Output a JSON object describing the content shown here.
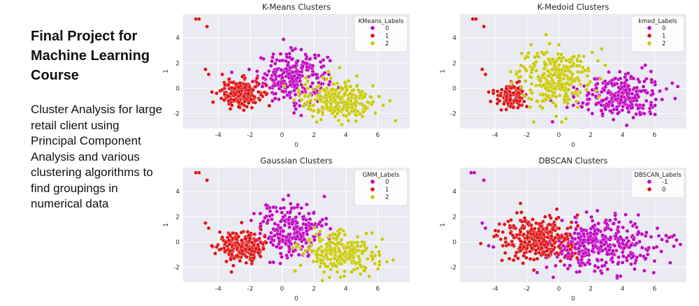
{
  "title": "Final Project for Machine Learning Course",
  "description": "Cluster Analysis for large retail client using Principal Component Analysis and various clustering algorithms to find groupings in numerical data",
  "colors": {
    "cluster0": "#c000c0",
    "cluster1": "#dd1111",
    "cluster2": "#c8c800",
    "plot_bg": "#eaeaf2",
    "grid": "#ffffff"
  },
  "chart_data": [
    {
      "type": "scatter",
      "title": "K-Means Clusters",
      "xlabel": "0",
      "ylabel": "1",
      "xlim": [
        -6.2,
        8.0
      ],
      "ylim": [
        -3.2,
        5.9
      ],
      "xticks": [
        "-4",
        "-2",
        "0",
        "2",
        "4",
        "6"
      ],
      "yticks": [
        "-2",
        "0",
        "2",
        "4"
      ],
      "legend": {
        "title": "KMeans_Labels",
        "entries": [
          {
            "label": "0",
            "color": "#c000c0"
          },
          {
            "label": "1",
            "color": "#dd1111"
          },
          {
            "label": "2",
            "color": "#c8c800"
          }
        ],
        "position": "top-right"
      },
      "clusters": [
        {
          "label": "0",
          "color": "#c000c0",
          "center": [
            0.7,
            0.9
          ],
          "spread": [
            1.1,
            1.0
          ],
          "n": 260
        },
        {
          "label": "1",
          "color": "#dd1111",
          "center": [
            -2.6,
            -0.4
          ],
          "spread": [
            0.6,
            0.55
          ],
          "n": 230
        },
        {
          "label": "2",
          "color": "#c8c800",
          "center": [
            3.6,
            -0.9
          ],
          "spread": [
            1.2,
            0.8
          ],
          "n": 260
        }
      ],
      "outliers": [
        {
          "x": -5.2,
          "y": 5.5,
          "label": "1"
        },
        {
          "x": -5.4,
          "y": 5.5,
          "label": "1"
        },
        {
          "x": -4.7,
          "y": 4.9,
          "label": "1"
        },
        {
          "x": -4.8,
          "y": 1.5,
          "label": "1"
        },
        {
          "x": -4.6,
          "y": 1.1,
          "label": "1"
        },
        {
          "x": -4.4,
          "y": -0.3,
          "label": "1"
        },
        {
          "x": -4.1,
          "y": -0.4,
          "label": "1"
        }
      ]
    },
    {
      "type": "scatter",
      "title": "K-Medoid Clusters",
      "xlabel": "0",
      "ylabel": "1",
      "xlim": [
        -6.2,
        8.0
      ],
      "ylim": [
        -3.2,
        5.9
      ],
      "xticks": [
        "-4",
        "-2",
        "0",
        "2",
        "4",
        "6"
      ],
      "yticks": [
        "-2",
        "0",
        "2",
        "4"
      ],
      "legend": {
        "title": "kmed_Labels",
        "entries": [
          {
            "label": "0",
            "color": "#c000c0"
          },
          {
            "label": "1",
            "color": "#dd1111"
          },
          {
            "label": "2",
            "color": "#c8c800"
          }
        ],
        "position": "top-right"
      },
      "clusters": [
        {
          "label": "0",
          "color": "#c000c0",
          "center": [
            3.8,
            -0.6
          ],
          "spread": [
            1.3,
            0.9
          ],
          "n": 280
        },
        {
          "label": "1",
          "color": "#dd1111",
          "center": [
            -2.9,
            -0.6
          ],
          "spread": [
            0.45,
            0.45
          ],
          "n": 120
        },
        {
          "label": "2",
          "color": "#c8c800",
          "center": [
            -0.3,
            0.8
          ],
          "spread": [
            1.1,
            1.1
          ],
          "n": 300
        }
      ],
      "outliers": [
        {
          "x": -5.2,
          "y": 5.5,
          "label": "1"
        },
        {
          "x": -5.4,
          "y": 5.5,
          "label": "1"
        },
        {
          "x": -4.7,
          "y": 4.9,
          "label": "1"
        },
        {
          "x": -4.8,
          "y": 1.5,
          "label": "1"
        },
        {
          "x": -4.6,
          "y": 1.1,
          "label": "1"
        },
        {
          "x": -4.4,
          "y": -0.3,
          "label": "1"
        },
        {
          "x": -4.1,
          "y": -0.4,
          "label": "1"
        }
      ]
    },
    {
      "type": "scatter",
      "title": "Gaussian Clusters",
      "xlabel": "0",
      "ylabel": "1",
      "xlim": [
        -6.2,
        8.0
      ],
      "ylim": [
        -3.2,
        5.9
      ],
      "xticks": [
        "-4",
        "-2",
        "0",
        "2",
        "4",
        "6"
      ],
      "yticks": [
        "-2",
        "0",
        "2",
        "4"
      ],
      "legend": {
        "title": "GMM_Labels",
        "entries": [
          {
            "label": "0",
            "color": "#c000c0"
          },
          {
            "label": "1",
            "color": "#dd1111"
          },
          {
            "label": "2",
            "color": "#c8c800"
          }
        ],
        "position": "top-right"
      },
      "clusters": [
        {
          "label": "0",
          "color": "#c000c0",
          "center": [
            0.6,
            0.8
          ],
          "spread": [
            1.1,
            1.1
          ],
          "n": 260
        },
        {
          "label": "1",
          "color": "#dd1111",
          "center": [
            -2.5,
            -0.4
          ],
          "spread": [
            0.65,
            0.6
          ],
          "n": 250
        },
        {
          "label": "2",
          "color": "#c8c800",
          "center": [
            3.6,
            -0.9
          ],
          "spread": [
            1.2,
            0.8
          ],
          "n": 250
        }
      ],
      "outliers": [
        {
          "x": -5.2,
          "y": 5.5,
          "label": "1"
        },
        {
          "x": -5.4,
          "y": 5.5,
          "label": "1"
        },
        {
          "x": -4.7,
          "y": 4.9,
          "label": "1"
        },
        {
          "x": -4.8,
          "y": 1.5,
          "label": "1"
        },
        {
          "x": -4.6,
          "y": 1.1,
          "label": "1"
        },
        {
          "x": -4.4,
          "y": -0.3,
          "label": "1"
        },
        {
          "x": -4.1,
          "y": -0.4,
          "label": "1"
        }
      ]
    },
    {
      "type": "scatter",
      "title": "DBSCAN Clusters",
      "xlabel": "0",
      "ylabel": "1",
      "xlim": [
        -6.2,
        8.0
      ],
      "ylim": [
        -3.2,
        5.9
      ],
      "xticks": [
        "-4",
        "-2",
        "0",
        "2",
        "4",
        "6"
      ],
      "yticks": [
        "-2",
        "0",
        "2",
        "4"
      ],
      "legend": {
        "title": "DBSCAN_Labels",
        "entries": [
          {
            "label": "-1",
            "color": "#c000c0"
          },
          {
            "label": "0",
            "color": "#dd1111"
          }
        ],
        "position": "top-right"
      },
      "clusters": [
        {
          "label": "-1",
          "color": "#c000c0",
          "center": [
            2.6,
            -0.3
          ],
          "spread": [
            1.8,
            1.1
          ],
          "n": 380
        },
        {
          "label": "0",
          "color": "#dd1111",
          "center": [
            -1.4,
            0.2
          ],
          "spread": [
            1.1,
            0.9
          ],
          "n": 300
        }
      ],
      "outliers": [
        {
          "x": -5.3,
          "y": 5.5,
          "label": "-1"
        },
        {
          "x": -5.5,
          "y": 5.5,
          "label": "-1"
        },
        {
          "x": -4.7,
          "y": 4.9,
          "label": "-1"
        },
        {
          "x": -4.8,
          "y": 1.5,
          "label": "-1"
        },
        {
          "x": -4.6,
          "y": 1.1,
          "label": "-1"
        },
        {
          "x": -4.4,
          "y": -0.3,
          "label": "-1"
        },
        {
          "x": -4.1,
          "y": -0.4,
          "label": "-1"
        }
      ]
    }
  ]
}
